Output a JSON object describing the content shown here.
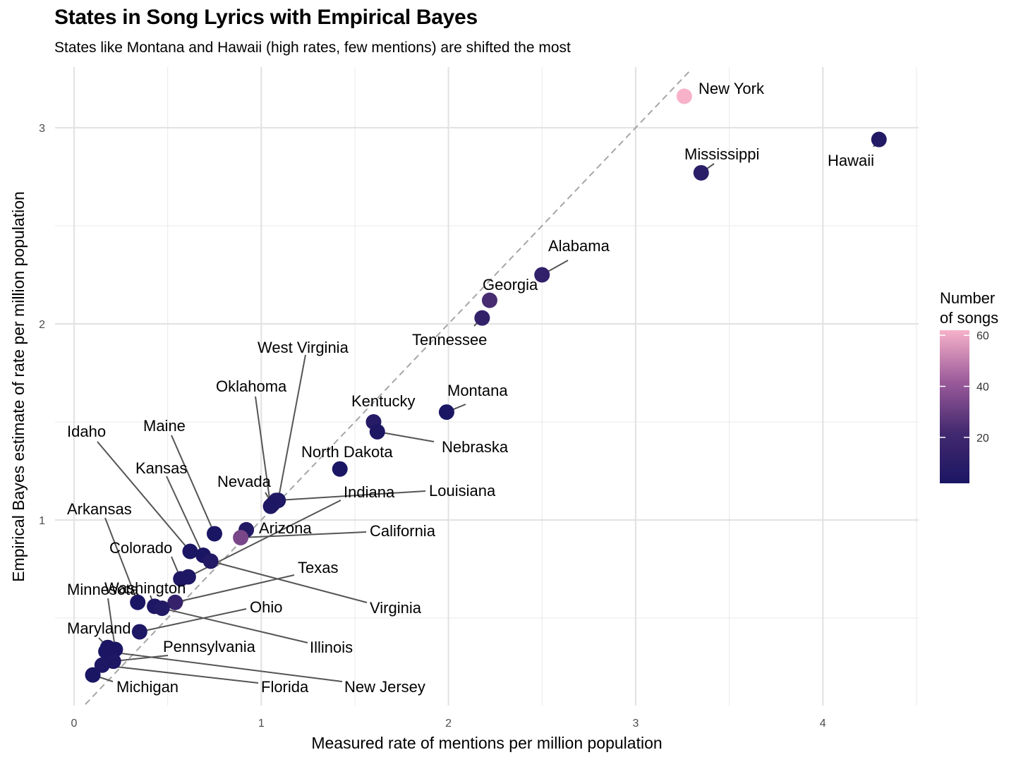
{
  "chart_data": {
    "type": "scatter",
    "title": "States in Song Lyrics with Empirical Bayes",
    "subtitle": "States like Montana and Hawaii (high rates, few mentions) are shifted the most",
    "xlabel": "Measured rate of mentions per million population",
    "ylabel": "Empirical Bayes estimate of rate per million population",
    "xlim": [
      -0.05,
      4.5
    ],
    "ylim": [
      0.15,
      3.3
    ],
    "x_ticks": [
      0,
      1,
      2,
      3,
      4
    ],
    "y_ticks": [
      1,
      2,
      3
    ],
    "grid": true,
    "reference_line": "y = x (dashed)",
    "color_legend": {
      "title": "Number of songs",
      "ticks": [
        20,
        40,
        60
      ],
      "range": [
        2,
        62
      ],
      "colors": [
        "#1b1663",
        "#f7b2c9"
      ],
      "placement": "right"
    },
    "points": [
      {
        "state": "New York",
        "x": 3.26,
        "y": 3.16,
        "songs": 62
      },
      {
        "state": "Hawaii",
        "x": 4.3,
        "y": 2.94,
        "songs": 6
      },
      {
        "state": "Mississippi",
        "x": 3.35,
        "y": 2.77,
        "songs": 10
      },
      {
        "state": "Alabama",
        "x": 2.5,
        "y": 2.25,
        "songs": 13
      },
      {
        "state": "Georgia",
        "x": 2.22,
        "y": 2.12,
        "songs": 23
      },
      {
        "state": "Tennessee",
        "x": 2.18,
        "y": 2.03,
        "songs": 14
      },
      {
        "state": "Montana",
        "x": 1.99,
        "y": 1.55,
        "songs": 2
      },
      {
        "state": "Kentucky",
        "x": 1.6,
        "y": 1.5,
        "songs": 7
      },
      {
        "state": "Nebraska",
        "x": 1.62,
        "y": 1.45,
        "songs": 3
      },
      {
        "state": "North Dakota",
        "x": 1.42,
        "y": 1.26,
        "songs": 1
      },
      {
        "state": "West Virginia",
        "x": 1.09,
        "y": 1.1,
        "songs": 2
      },
      {
        "state": "Louisiana",
        "x": 1.08,
        "y": 1.1,
        "songs": 5
      },
      {
        "state": "Oklahoma",
        "x": 1.05,
        "y": 1.07,
        "songs": 4
      },
      {
        "state": "Nevada",
        "x": 1.06,
        "y": 1.08,
        "songs": 3
      },
      {
        "state": "Arizona",
        "x": 0.92,
        "y": 0.95,
        "songs": 6
      },
      {
        "state": "California",
        "x": 0.89,
        "y": 0.91,
        "songs": 34
      },
      {
        "state": "Maine",
        "x": 0.75,
        "y": 0.93,
        "songs": 1
      },
      {
        "state": "Idaho",
        "x": 0.62,
        "y": 0.84,
        "songs": 1
      },
      {
        "state": "Kansas",
        "x": 0.69,
        "y": 0.82,
        "songs": 2
      },
      {
        "state": "Virginia",
        "x": 0.73,
        "y": 0.79,
        "songs": 6
      },
      {
        "state": "Indiana",
        "x": 0.61,
        "y": 0.71,
        "songs": 4
      },
      {
        "state": "Colorado",
        "x": 0.57,
        "y": 0.7,
        "songs": 3
      },
      {
        "state": "Texas",
        "x": 0.54,
        "y": 0.58,
        "songs": 15
      },
      {
        "state": "Arkansas",
        "x": 0.34,
        "y": 0.58,
        "songs": 1
      },
      {
        "state": "Washington",
        "x": 0.43,
        "y": 0.56,
        "songs": 3
      },
      {
        "state": "Illinois",
        "x": 0.47,
        "y": 0.55,
        "songs": 6
      },
      {
        "state": "Ohio",
        "x": 0.35,
        "y": 0.43,
        "songs": 4
      },
      {
        "state": "Minnesota",
        "x": 0.22,
        "y": 0.34,
        "songs": 1
      },
      {
        "state": "Maryland",
        "x": 0.18,
        "y": 0.35,
        "songs": 1
      },
      {
        "state": "New Jersey",
        "x": 0.17,
        "y": 0.33,
        "songs": 1
      },
      {
        "state": "Pennsylvania",
        "x": 0.21,
        "y": 0.28,
        "songs": 3
      },
      {
        "state": "Florida",
        "x": 0.15,
        "y": 0.26,
        "songs": 3
      },
      {
        "state": "Michigan",
        "x": 0.1,
        "y": 0.21,
        "songs": 2
      }
    ]
  }
}
